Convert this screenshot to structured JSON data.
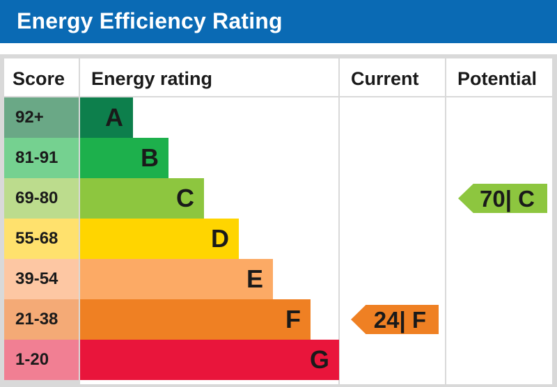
{
  "header": {
    "title": "Energy Efficiency Rating"
  },
  "columns": {
    "score": "Score",
    "energy_rating": "Energy rating",
    "current": "Current",
    "potential": "Potential"
  },
  "chart_data": {
    "type": "bar",
    "title": "Energy Efficiency Rating",
    "categories": [
      "A",
      "B",
      "C",
      "D",
      "E",
      "F",
      "G"
    ],
    "score_ranges": [
      "92+",
      "81-91",
      "69-80",
      "55-68",
      "39-54",
      "21-38",
      "1-20"
    ],
    "colors": [
      "#0d7f4c",
      "#1db04c",
      "#8dc63f",
      "#ffd500",
      "#fcaa65",
      "#ef8023",
      "#e9153b"
    ],
    "score_colors": [
      "#6aa886",
      "#75d190",
      "#bcdc8d",
      "#ffe16d",
      "#fdc7a3",
      "#f4aa76",
      "#f17f93"
    ],
    "current": {
      "value": 24,
      "band": "F",
      "label": "24| F",
      "color": "#ef8023"
    },
    "potential": {
      "value": 70,
      "band": "C",
      "label": "70| C",
      "color": "#8dc63f"
    }
  }
}
